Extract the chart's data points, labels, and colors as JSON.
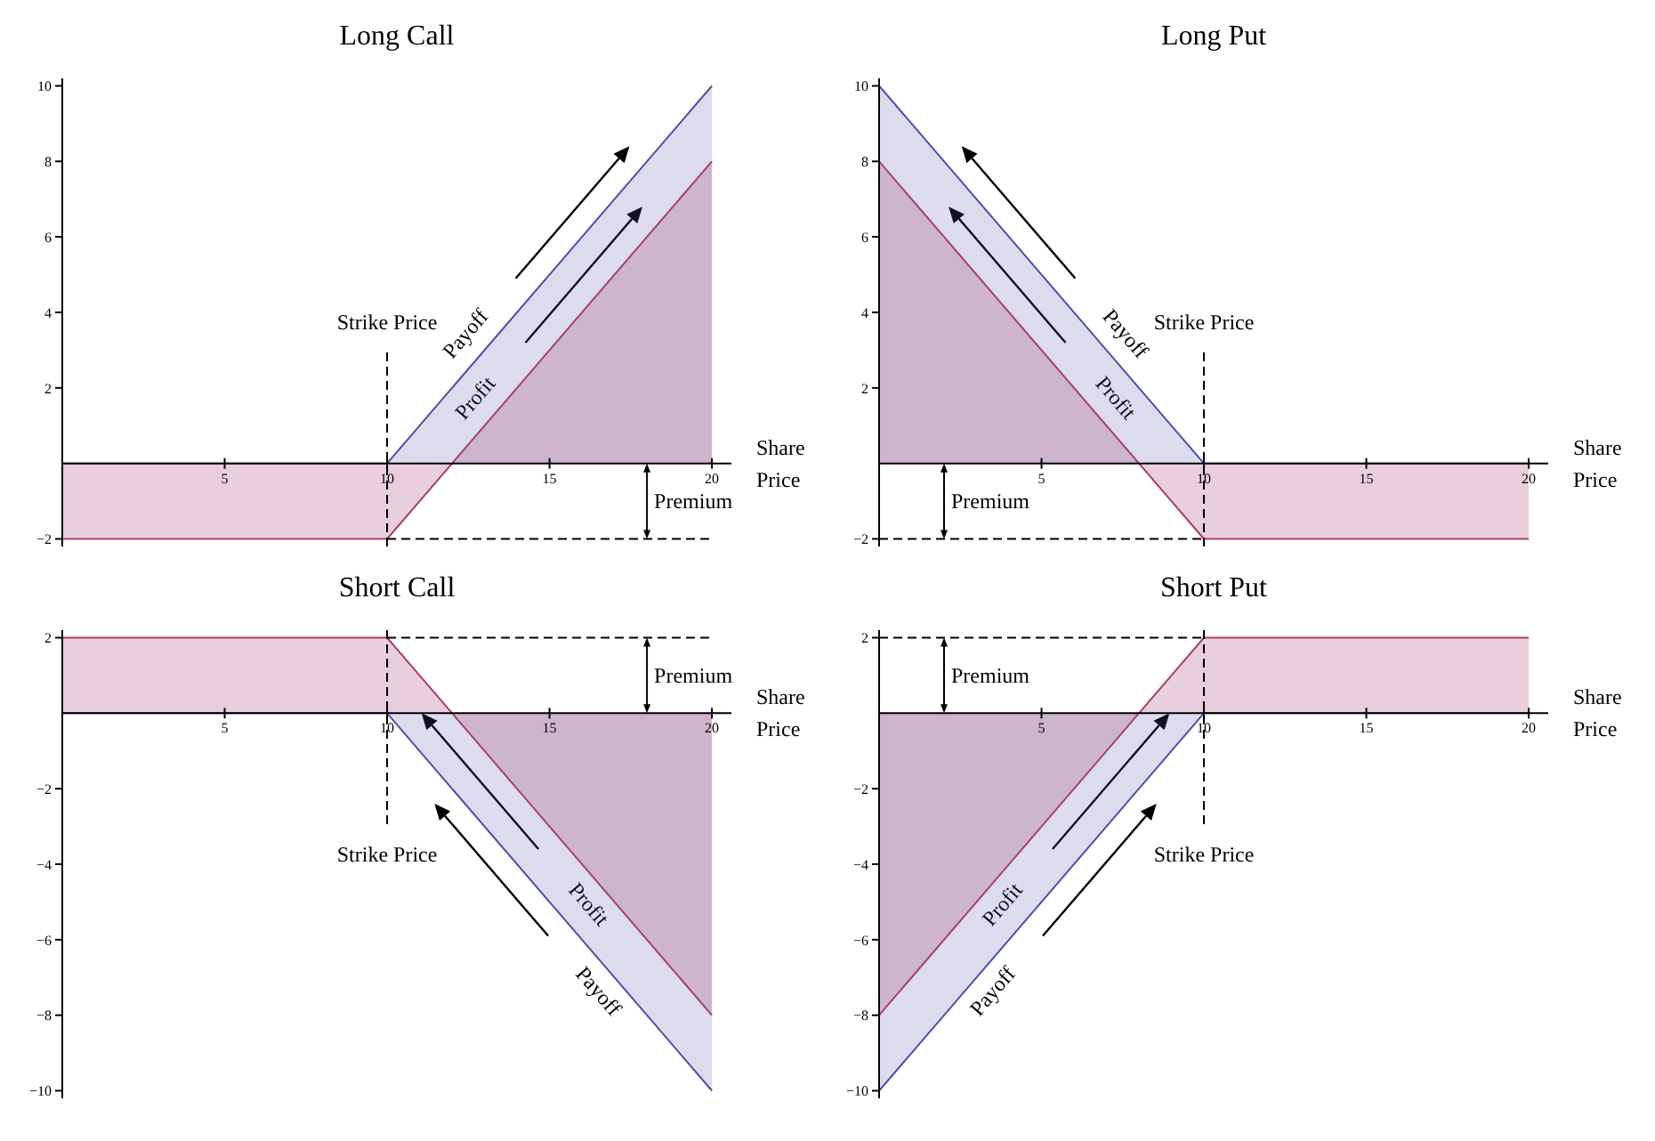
{
  "chart_data": [
    {
      "type": "area",
      "title": "Long Call",
      "xlabel": "Share Price",
      "x": [
        0,
        10,
        20
      ],
      "xlim": [
        0,
        20.6
      ],
      "xticks": [
        5,
        10,
        15,
        20
      ],
      "ylim": [
        -2.2,
        10.2
      ],
      "yticks": [
        -2,
        2,
        4,
        6,
        8,
        10
      ],
      "series": [
        {
          "name": "Payoff",
          "color": "#4f4fa8",
          "values": [
            0,
            0,
            10
          ]
        },
        {
          "name": "Profit",
          "color": "#a5406f",
          "values": [
            -2,
            -2,
            8
          ]
        }
      ],
      "ref_lines": [
        {
          "axis": "x",
          "value": 10,
          "label": "Strike Price",
          "line_style": "dashed"
        },
        {
          "axis": "y",
          "value": -2,
          "line_style": "dashed"
        }
      ],
      "annotations": [
        "Premium"
      ]
    },
    {
      "type": "area",
      "title": "Long Put",
      "xlabel": "Share Price",
      "x": [
        0,
        10,
        20
      ],
      "xlim": [
        0,
        20.6
      ],
      "xticks": [
        5,
        10,
        15,
        20
      ],
      "ylim": [
        -2.2,
        10.2
      ],
      "yticks": [
        -2,
        2,
        4,
        6,
        8,
        10
      ],
      "series": [
        {
          "name": "Payoff",
          "color": "#4f4fa8",
          "values": [
            10,
            0,
            0
          ]
        },
        {
          "name": "Profit",
          "color": "#a5406f",
          "values": [
            8,
            -2,
            -2
          ]
        }
      ],
      "ref_lines": [
        {
          "axis": "x",
          "value": 10,
          "label": "Strike Price",
          "line_style": "dashed"
        },
        {
          "axis": "y",
          "value": -2,
          "line_style": "dashed"
        }
      ],
      "annotations": [
        "Premium"
      ]
    },
    {
      "type": "area",
      "title": "Short Call",
      "xlabel": "Share Price",
      "x": [
        0,
        10,
        20
      ],
      "xlim": [
        0,
        20.6
      ],
      "xticks": [
        5,
        10,
        15,
        20
      ],
      "ylim": [
        -10.2,
        2.2
      ],
      "yticks": [
        -10,
        -8,
        -6,
        -4,
        -2,
        2
      ],
      "series": [
        {
          "name": "Payoff",
          "color": "#4f4fa8",
          "values": [
            0,
            0,
            -10
          ]
        },
        {
          "name": "Profit",
          "color": "#a5406f",
          "values": [
            2,
            2,
            -8
          ]
        }
      ],
      "ref_lines": [
        {
          "axis": "x",
          "value": 10,
          "label": "Strike Price",
          "line_style": "dashed"
        },
        {
          "axis": "y",
          "value": 2,
          "line_style": "dashed"
        }
      ],
      "annotations": [
        "Premium"
      ]
    },
    {
      "type": "area",
      "title": "Short Put",
      "xlabel": "Share Price",
      "x": [
        0,
        10,
        20
      ],
      "xlim": [
        0,
        20.6
      ],
      "xticks": [
        5,
        10,
        15,
        20
      ],
      "ylim": [
        -10.2,
        2.2
      ],
      "yticks": [
        -10,
        -8,
        -6,
        -4,
        -2,
        2
      ],
      "series": [
        {
          "name": "Payoff",
          "color": "#4f4fa8",
          "values": [
            -10,
            0,
            0
          ]
        },
        {
          "name": "Profit",
          "color": "#a5406f",
          "values": [
            -8,
            2,
            2
          ]
        }
      ],
      "ref_lines": [
        {
          "axis": "x",
          "value": 10,
          "label": "Strike Price",
          "line_style": "dashed"
        },
        {
          "axis": "y",
          "value": 2,
          "line_style": "dashed"
        }
      ],
      "annotations": [
        "Premium"
      ]
    }
  ]
}
